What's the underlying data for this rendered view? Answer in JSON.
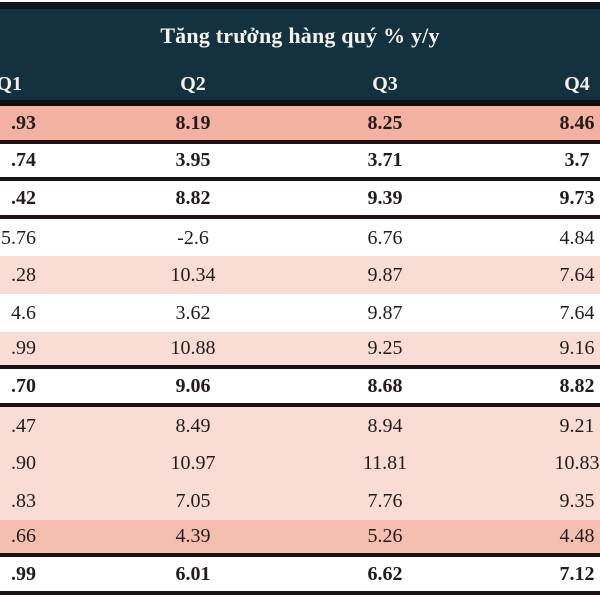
{
  "title": "Tăng trưởng hàng quý % y/y",
  "column_headers": [
    "Q1",
    "Q2",
    "Q3",
    "Q4"
  ],
  "rows": [
    {
      "values": [
        ".93",
        "8.19",
        "8.25",
        "8.46"
      ],
      "bg": "salmon",
      "bold": true,
      "border_bottom": true
    },
    {
      "values": [
        ".74",
        "3.95",
        "3.71",
        "3.7"
      ],
      "bg": "white",
      "bold": true,
      "border_bottom": true
    },
    {
      "values": [
        ".42",
        "8.82",
        "9.39",
        "9.73"
      ],
      "bg": "white",
      "bold": true,
      "border_bottom": true
    },
    {
      "values": [
        "5.76",
        "-2.6",
        "6.76",
        "4.84"
      ],
      "bg": "white",
      "bold": false,
      "border_bottom": false
    },
    {
      "values": [
        ".28",
        "10.34",
        "9.87",
        "7.64"
      ],
      "bg": "pink",
      "bold": false,
      "border_bottom": false
    },
    {
      "values": [
        "4.6",
        "3.62",
        "9.87",
        "7.64"
      ],
      "bg": "white",
      "bold": false,
      "border_bottom": false
    },
    {
      "values": [
        ".99",
        "10.88",
        "9.25",
        "9.16"
      ],
      "bg": "pink",
      "bold": false,
      "border_bottom": true
    },
    {
      "values": [
        ".70",
        "9.06",
        "8.68",
        "8.82"
      ],
      "bg": "white",
      "bold": true,
      "border_bottom": true
    },
    {
      "values": [
        ".47",
        "8.49",
        "8.94",
        "9.21"
      ],
      "bg": "pink",
      "bold": false,
      "border_bottom": false
    },
    {
      "values": [
        ".90",
        "10.97",
        "11.81",
        "10.83"
      ],
      "bg": "pink",
      "bold": false,
      "border_bottom": false
    },
    {
      "values": [
        ".83",
        "7.05",
        "7.76",
        "9.35"
      ],
      "bg": "pink",
      "bold": false,
      "border_bottom": false
    },
    {
      "values": [
        ".66",
        "4.39",
        "5.26",
        "4.48"
      ],
      "bg": "salmon2",
      "bold": false,
      "border_bottom": true
    },
    {
      "values": [
        ".99",
        "6.01",
        "6.62",
        "7.12"
      ],
      "bg": "white",
      "bold": true,
      "border_bottom": true
    }
  ],
  "colors": {
    "header_bg": "#143140",
    "header_text": "#f4f2ec",
    "border_dark": "#1b1214",
    "row_salmon": "#f2b1a1",
    "row_pink": "#f9dcd3",
    "row_salmon_light": "#f5bfaf",
    "cell_text": "#221c1c"
  },
  "chart_data": {
    "type": "table",
    "title": "Tăng trưởng hàng quý % y/y",
    "columns": [
      "Q1",
      "Q2",
      "Q3",
      "Q4"
    ],
    "rows": [
      [
        ".93",
        "8.19",
        "8.25",
        "8.46"
      ],
      [
        ".74",
        "3.95",
        "3.71",
        "3.7"
      ],
      [
        ".42",
        "8.82",
        "9.39",
        "9.73"
      ],
      [
        "5.76",
        "-2.6",
        "6.76",
        "4.84"
      ],
      [
        ".28",
        "10.34",
        "9.87",
        "7.64"
      ],
      [
        "4.6",
        "3.62",
        "9.87",
        "7.64"
      ],
      [
        ".99",
        "10.88",
        "9.25",
        "9.16"
      ],
      [
        ".70",
        "9.06",
        "8.68",
        "8.82"
      ],
      [
        ".47",
        "8.49",
        "8.94",
        "9.21"
      ],
      [
        ".90",
        "10.97",
        "11.81",
        "10.83"
      ],
      [
        ".83",
        "7.05",
        "7.76",
        "9.35"
      ],
      [
        ".66",
        "4.39",
        "5.26",
        "4.48"
      ],
      [
        ".99",
        "6.01",
        "6.62",
        "7.12"
      ]
    ],
    "highlighted_rows_bold": [
      0,
      1,
      2,
      7,
      12
    ],
    "note_layout": "first column clipped at left edge of screenshot"
  }
}
